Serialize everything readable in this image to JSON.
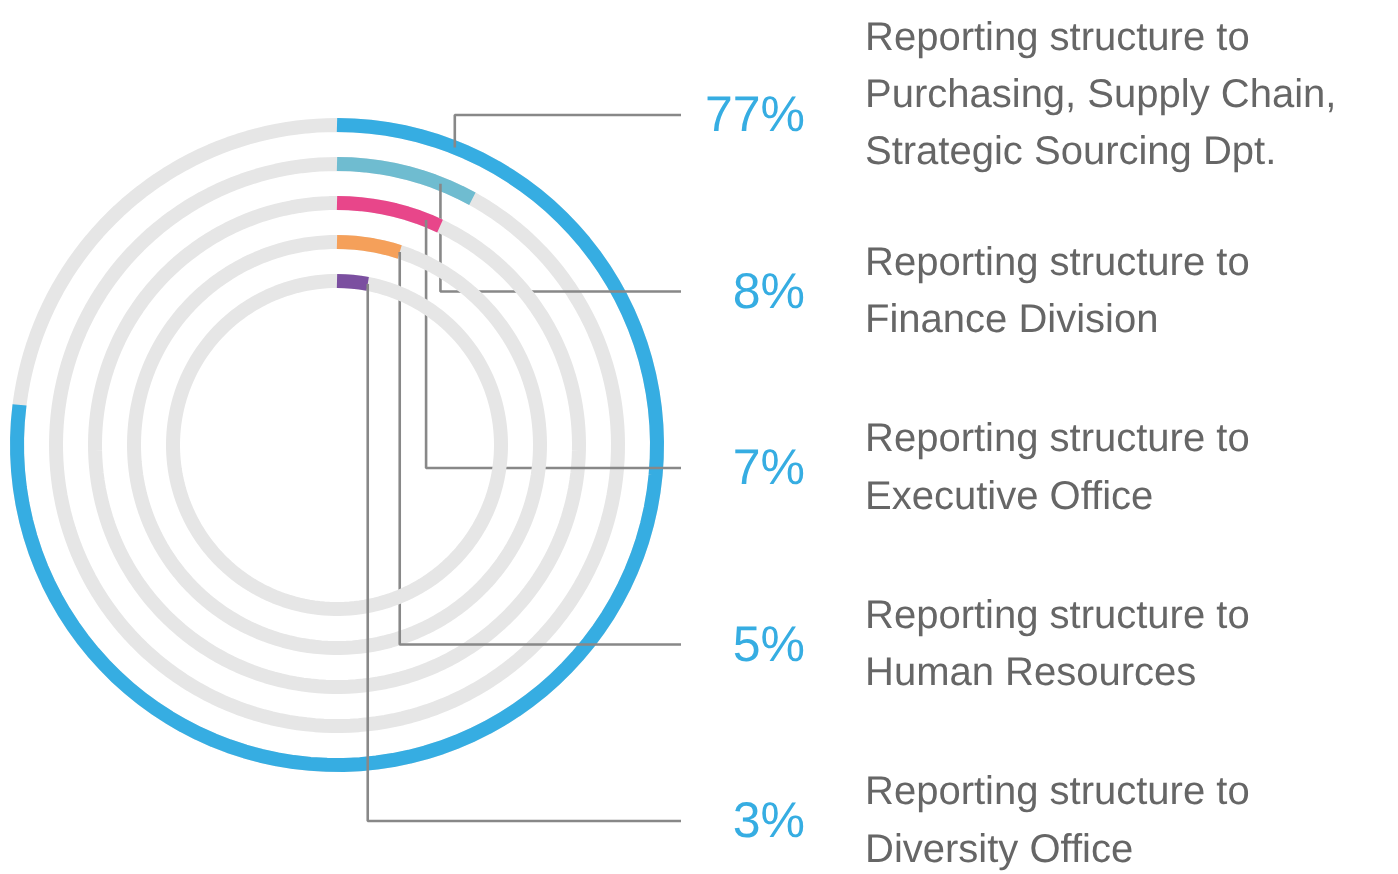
{
  "chart_data": {
    "type": "other",
    "categories": [
      "Reporting structure to\nPurchasing, Supply Chain,\nStrategic Sourcing Dpt.",
      "Reporting structure to\nFinance Division",
      "Reporting structure to\nExecutive Office",
      "Reporting structure to\nHuman Resources",
      "Reporting structure to\nDiversity Office"
    ],
    "values": [
      77,
      8,
      7,
      5,
      3
    ],
    "value_labels": [
      "77%",
      "8%",
      "7%",
      "5%",
      "3%"
    ],
    "colors": [
      "#36ade2",
      "#6fbcd0",
      "#e8468a",
      "#f5a05a",
      "#7b4fa0"
    ]
  }
}
